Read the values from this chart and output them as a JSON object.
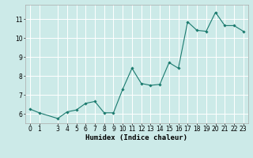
{
  "xlabel": "Humidex (Indice chaleur)",
  "ylabel": "",
  "bg_color": "#cceae8",
  "line_color": "#1a7a6e",
  "marker_color": "#1a7a6e",
  "grid_color": "#ffffff",
  "x": [
    0,
    1,
    3,
    4,
    5,
    6,
    7,
    8,
    9,
    10,
    11,
    12,
    13,
    14,
    15,
    16,
    17,
    18,
    19,
    20,
    21,
    22,
    23
  ],
  "y": [
    6.25,
    6.05,
    5.75,
    6.1,
    6.2,
    6.55,
    6.65,
    6.05,
    6.05,
    7.3,
    8.4,
    7.6,
    7.5,
    7.55,
    8.7,
    8.4,
    10.85,
    10.4,
    10.35,
    11.35,
    10.65,
    10.65,
    10.35
  ],
  "ylim": [
    5.5,
    11.75
  ],
  "yticks": [
    6,
    7,
    8,
    9,
    10,
    11
  ],
  "xticks": [
    0,
    1,
    3,
    4,
    5,
    6,
    7,
    8,
    9,
    10,
    11,
    12,
    13,
    14,
    15,
    16,
    17,
    18,
    19,
    20,
    21,
    22,
    23
  ],
  "xlim": [
    -0.5,
    23.5
  ],
  "tick_fontsize": 5.5,
  "xlabel_fontsize": 6.5
}
